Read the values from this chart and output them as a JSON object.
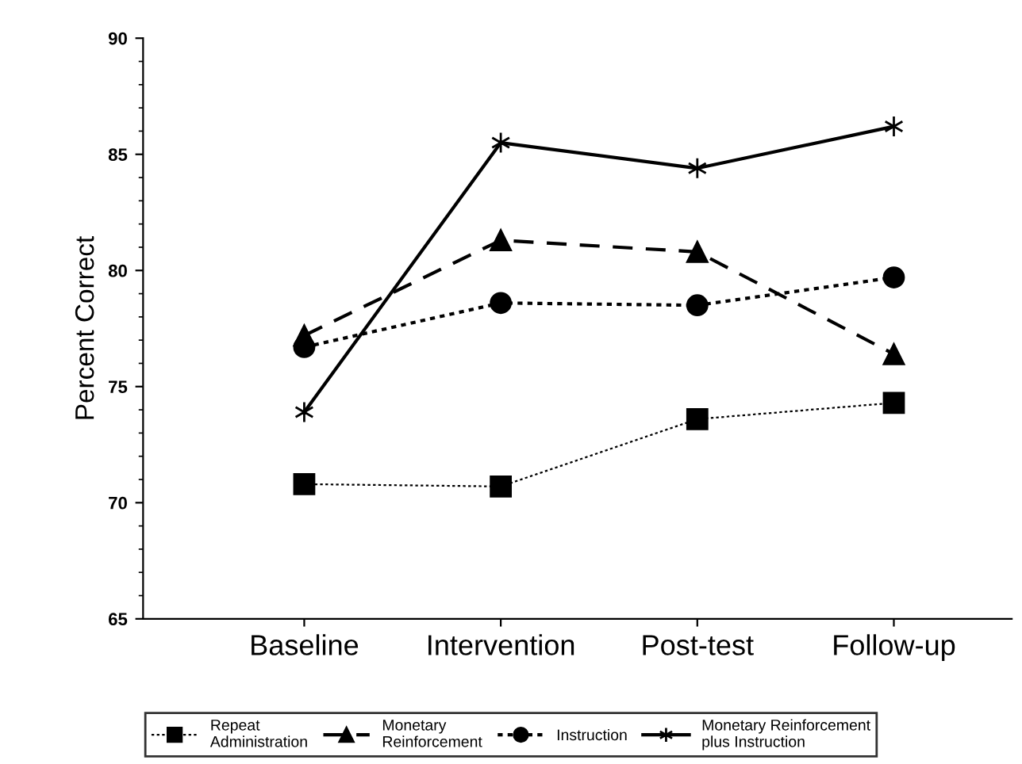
{
  "chart_data": {
    "type": "line",
    "ylabel": "Percent Correct",
    "categories": [
      "Baseline",
      "Intervention",
      "Post-test",
      "Follow-up"
    ],
    "series": [
      {
        "name": "Repeat\nAdministration",
        "color": "#000000",
        "marker": "square",
        "line_style": "dotted",
        "values": [
          70.8,
          70.7,
          73.6,
          74.3
        ]
      },
      {
        "name": "Monetary\nReinforcement",
        "color": "#000000",
        "marker": "triangle",
        "line_style": "dashed",
        "values": [
          77.2,
          81.3,
          80.8,
          76.4
        ]
      },
      {
        "name": "Instruction",
        "color": "#000000",
        "marker": "circle",
        "line_style": "dotted",
        "values": [
          76.7,
          78.6,
          78.5,
          79.7
        ]
      },
      {
        "name": "Monetary Reinforcement\nplus Instruction",
        "color": "#000000",
        "marker": "cross",
        "line_style": "solid",
        "values": [
          73.9,
          85.5,
          84.4,
          86.2
        ]
      }
    ],
    "ylim": [
      65,
      90
    ],
    "yticks": [
      65,
      70,
      75,
      80,
      85,
      90
    ],
    "grid": false,
    "legend": "bottom"
  }
}
